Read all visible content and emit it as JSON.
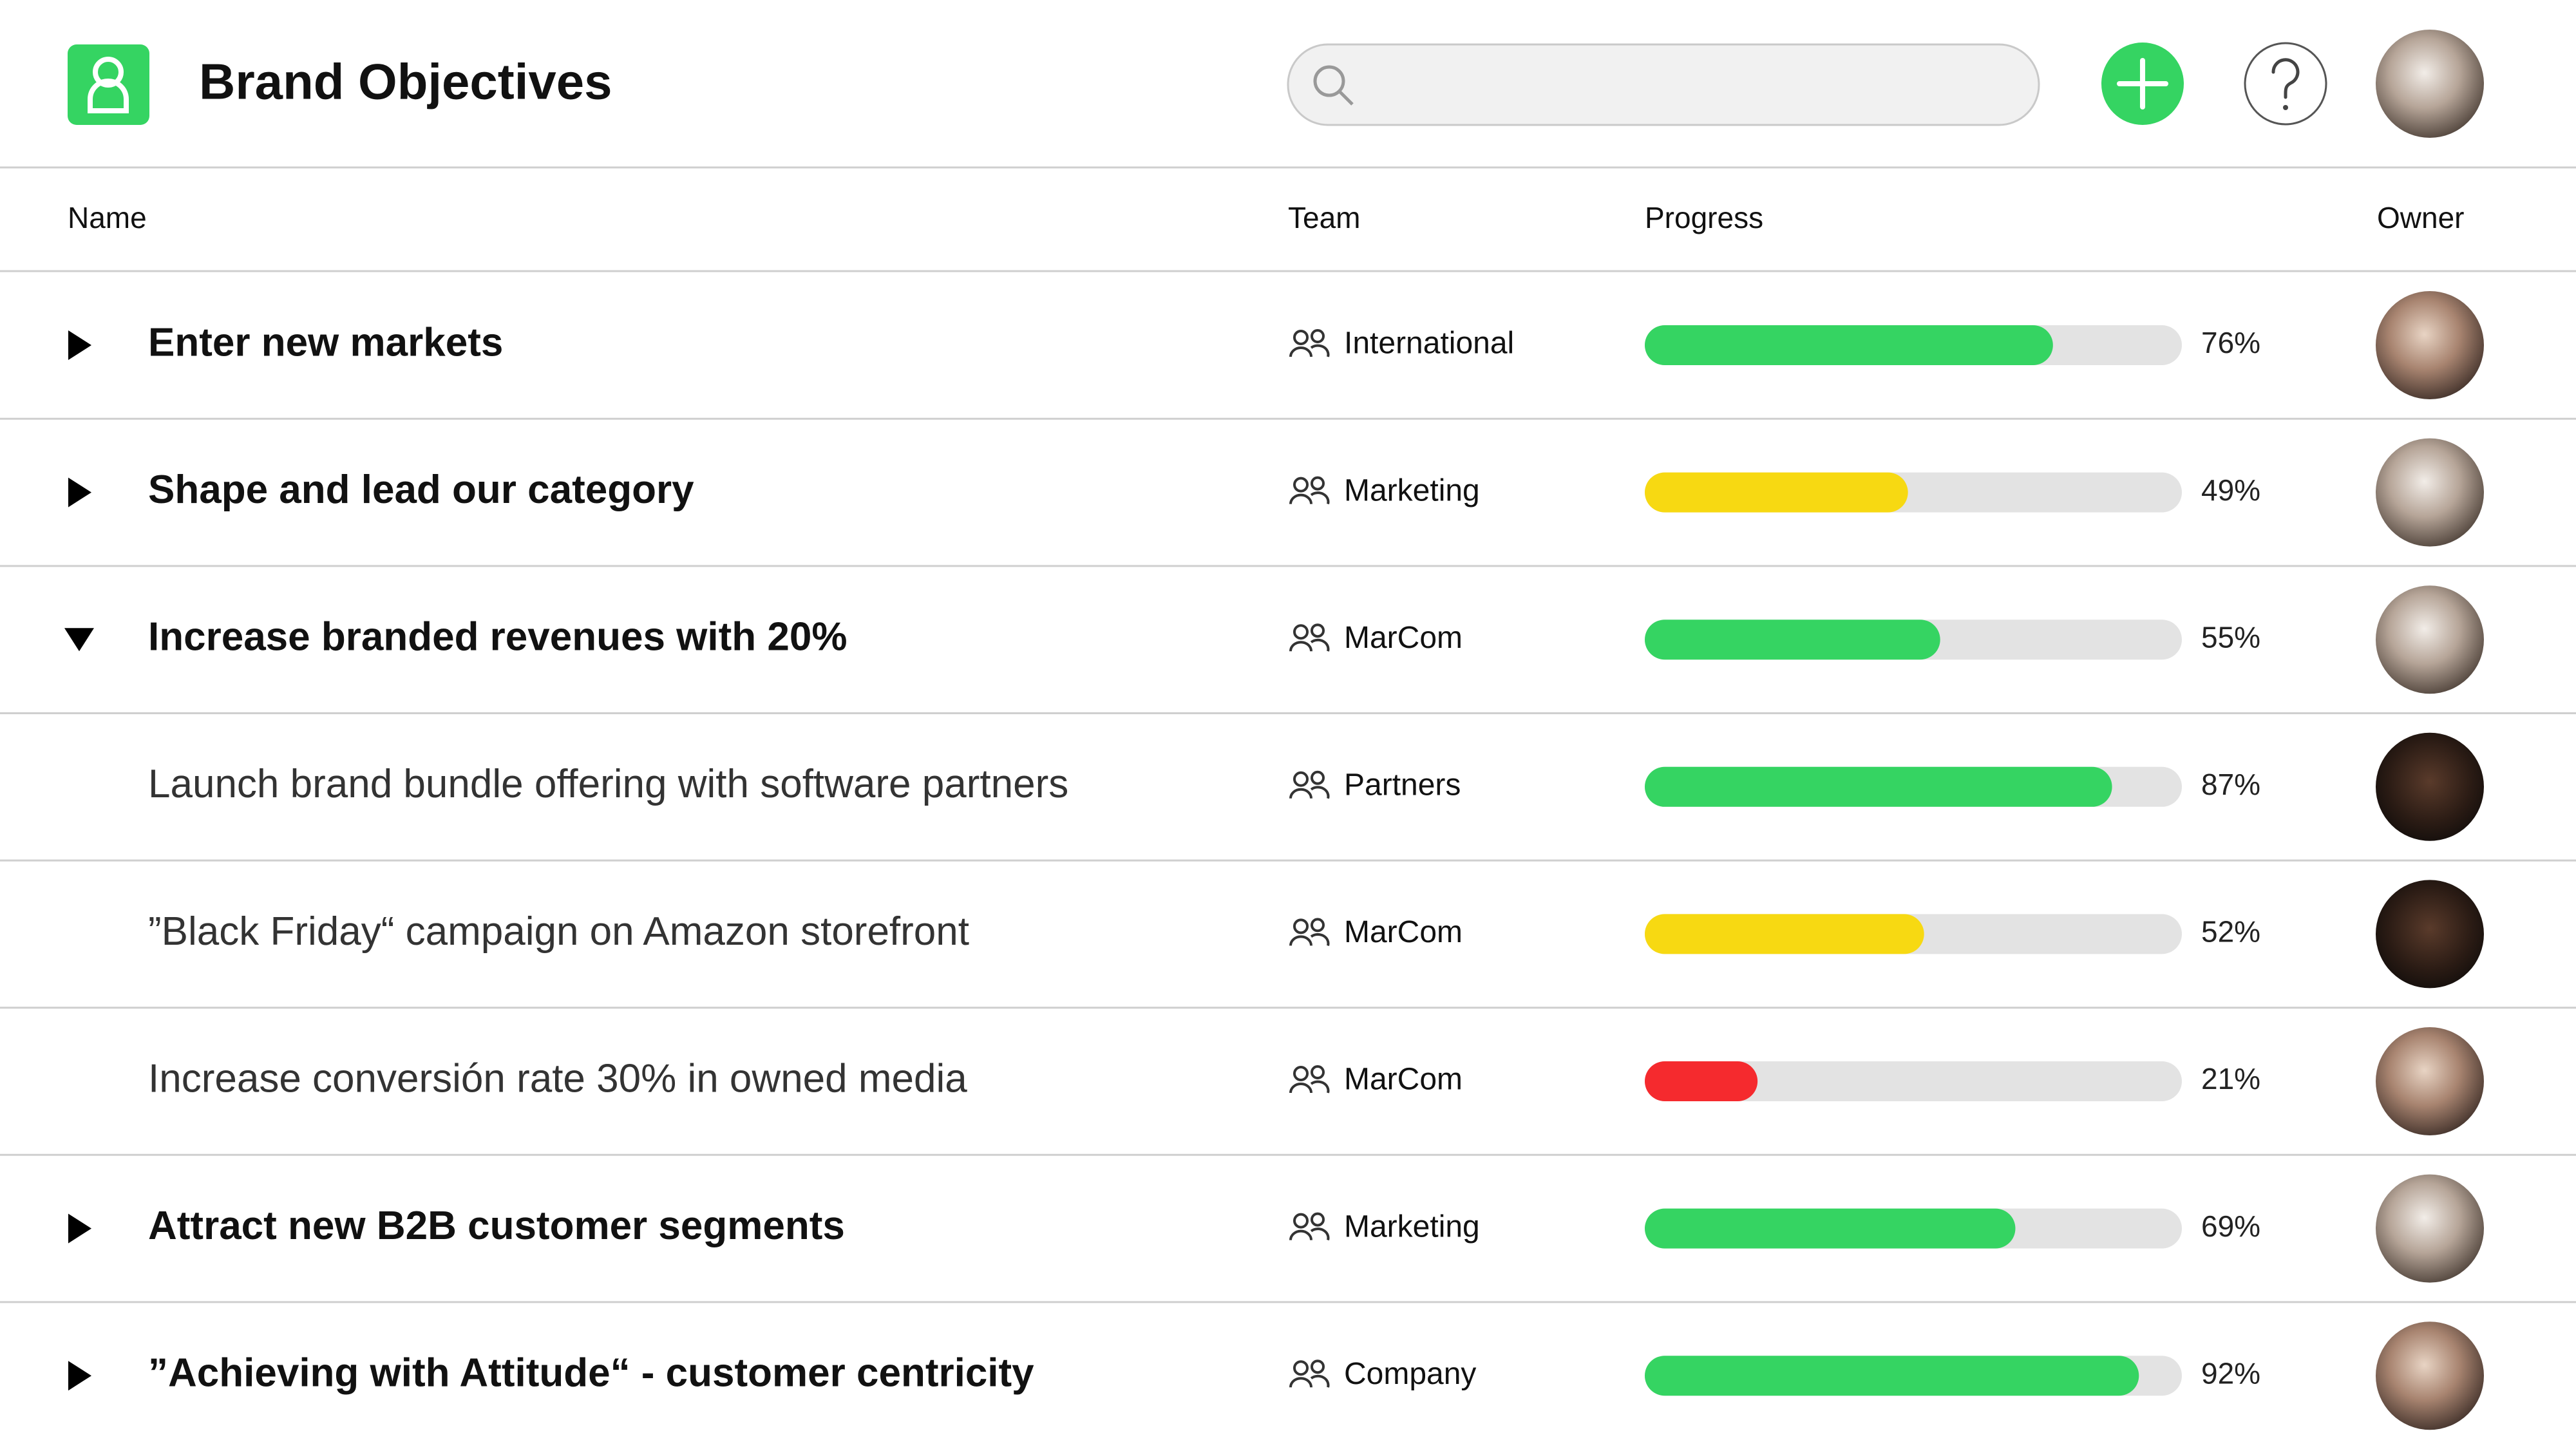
{
  "header": {
    "title": "Brand Objectives"
  },
  "table": {
    "columns": [
      "Name",
      "Team",
      "Progress",
      "Owner"
    ],
    "rows": [
      {
        "name": "Enter new markets",
        "team": "International",
        "progress": 76,
        "progress_label": "76%",
        "color": "#35d462",
        "level": 1,
        "expanded": false
      },
      {
        "name": "Shape and lead our category",
        "team": "Marketing",
        "progress": 49,
        "progress_label": "49%",
        "color": "#f7d912",
        "level": 1,
        "expanded": false
      },
      {
        "name": "Increase branded revenues with 20%",
        "team": "MarCom",
        "progress": 55,
        "progress_label": "55%",
        "color": "#35d462",
        "level": 1,
        "expanded": true
      },
      {
        "name": "Launch brand bundle offering with software partners",
        "team": "Partners",
        "progress": 87,
        "progress_label": "87%",
        "color": "#35d462",
        "level": 2
      },
      {
        "name": "”Black Friday“ campaign on Amazon storefront",
        "team": "MarCom",
        "progress": 52,
        "progress_label": "52%",
        "color": "#f7d912",
        "level": 2
      },
      {
        "name": "Increase conversión rate 30% in owned media",
        "team": "MarCom",
        "progress": 21,
        "progress_label": "21%",
        "color": "#f52a2e",
        "level": 2
      },
      {
        "name": "Attract new B2B customer segments",
        "team": "Marketing",
        "progress": 69,
        "progress_label": "69%",
        "color": "#35d462",
        "level": 1,
        "expanded": false
      },
      {
        "name": "”Achieving with Attitude“ - customer centricity",
        "team": "Company",
        "progress": 92,
        "progress_label": "92%",
        "color": "#35d462",
        "level": 1,
        "expanded": false
      }
    ]
  }
}
